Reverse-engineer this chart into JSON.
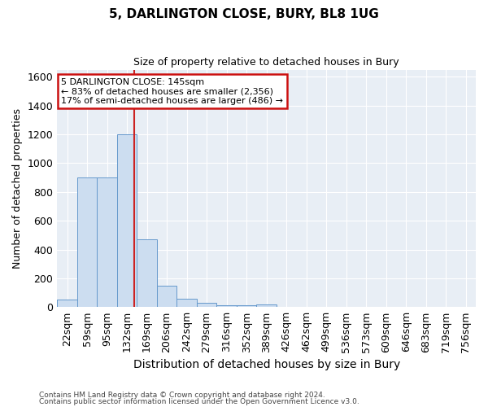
{
  "title": "5, DARLINGTON CLOSE, BURY, BL8 1UG",
  "subtitle": "Size of property relative to detached houses in Bury",
  "xlabel": "Distribution of detached houses by size in Bury",
  "ylabel": "Number of detached properties",
  "bin_labels": [
    "22sqm",
    "59sqm",
    "95sqm",
    "132sqm",
    "169sqm",
    "206sqm",
    "242sqm",
    "279sqm",
    "316sqm",
    "352sqm",
    "389sqm",
    "426sqm",
    "462sqm",
    "499sqm",
    "536sqm",
    "573sqm",
    "609sqm",
    "646sqm",
    "683sqm",
    "719sqm",
    "756sqm"
  ],
  "bar_heights": [
    50,
    900,
    900,
    1200,
    470,
    150,
    60,
    30,
    15,
    15,
    20,
    0,
    0,
    0,
    0,
    0,
    0,
    0,
    0,
    0,
    0
  ],
  "bar_color": "#ccddf0",
  "bar_edgecolor": "#6699cc",
  "vline_x_index": 3.35,
  "vline_color": "#cc2222",
  "annotation_text": "5 DARLINGTON CLOSE: 145sqm\n← 83% of detached houses are smaller (2,356)\n17% of semi-detached houses are larger (486) →",
  "annotation_box_edgecolor": "#cc1111",
  "annotation_box_facecolor": "#ffffff",
  "ylim": [
    0,
    1650
  ],
  "yticks": [
    0,
    200,
    400,
    600,
    800,
    1000,
    1200,
    1400,
    1600
  ],
  "footer1": "Contains HM Land Registry data © Crown copyright and database right 2024.",
  "footer2": "Contains public sector information licensed under the Open Government Licence v3.0.",
  "fig_bg_color": "#ffffff",
  "plot_bg_color": "#e8eef5",
  "figsize": [
    6.0,
    5.0
  ],
  "dpi": 100
}
